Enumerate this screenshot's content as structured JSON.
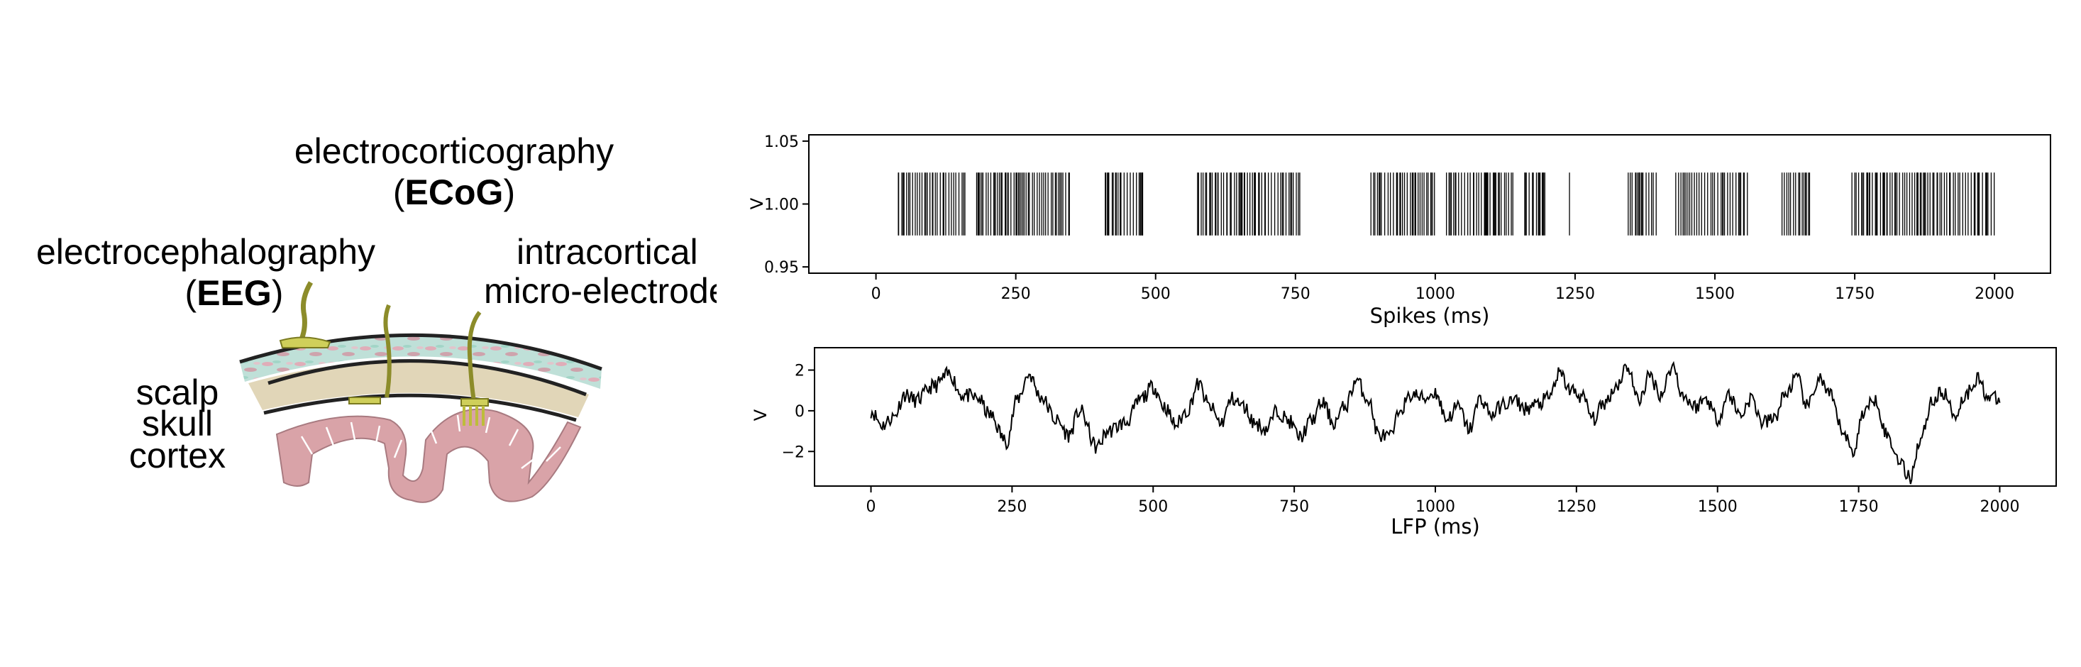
{
  "diagram": {
    "ecog_label": "electrocorticography",
    "ecog_abbr": "ECoG",
    "eeg_label": "electrocephalography",
    "eeg_abbr": "EEG",
    "intracortical_label": "intracortical",
    "microelectrode_label": "micro-electrode",
    "layers": [
      "scalp",
      "skull",
      "cortex"
    ]
  },
  "chart_data": [
    {
      "type": "event-raster",
      "xlabel": "Spikes (ms)",
      "ylabel": "V",
      "xlim": [
        -120,
        2100
      ],
      "ylim": [
        0.945,
        1.055
      ],
      "xticks": [
        0,
        250,
        500,
        750,
        1000,
        1250,
        1500,
        1750,
        2000
      ],
      "yticks": [
        0.95,
        1.0,
        1.05
      ],
      "ytick_labels": [
        "0.95",
        "1.00",
        "1.05"
      ],
      "event_value": 1.0,
      "event_line_extent": [
        0.975,
        1.025
      ],
      "bursts_ms": [
        [
          40,
          160
        ],
        [
          180,
          350
        ],
        [
          410,
          480
        ],
        [
          575,
          760
        ],
        [
          885,
          1000
        ],
        [
          1020,
          1140
        ],
        [
          1160,
          1200
        ],
        [
          1345,
          1400
        ],
        [
          1430,
          1560
        ],
        [
          1620,
          1670
        ],
        [
          1745,
          2000
        ]
      ],
      "isolated_ms": [
        1240
      ],
      "color": "#000000"
    },
    {
      "type": "line",
      "xlabel": "LFP (ms)",
      "ylabel": "V",
      "xlim": [
        -100,
        2100
      ],
      "ylim": [
        -3.7,
        3.1
      ],
      "xticks": [
        0,
        250,
        500,
        750,
        1000,
        1250,
        1500,
        1750,
        2000
      ],
      "yticks": [
        -2,
        0,
        2
      ],
      "ytick_labels": [
        "−2",
        "0",
        "2"
      ],
      "x_range": [
        0,
        2000
      ],
      "keypoints": [
        [
          0,
          0
        ],
        [
          20,
          -0.7
        ],
        [
          40,
          -0.3
        ],
        [
          60,
          0.8
        ],
        [
          80,
          0.5
        ],
        [
          110,
          1.2
        ],
        [
          140,
          1.8
        ],
        [
          160,
          0.8
        ],
        [
          190,
          0.6
        ],
        [
          210,
          -0.2
        ],
        [
          240,
          -1.5
        ],
        [
          260,
          0.6
        ],
        [
          280,
          1.8
        ],
        [
          300,
          0.7
        ],
        [
          330,
          -0.5
        ],
        [
          350,
          -1.2
        ],
        [
          370,
          0.0
        ],
        [
          400,
          -1.8
        ],
        [
          420,
          -1.0
        ],
        [
          450,
          -0.6
        ],
        [
          480,
          0.6
        ],
        [
          500,
          1.2
        ],
        [
          520,
          0.2
        ],
        [
          540,
          -0.7
        ],
        [
          560,
          0.0
        ],
        [
          580,
          1.3
        ],
        [
          600,
          0.2
        ],
        [
          620,
          -0.6
        ],
        [
          640,
          0.6
        ],
        [
          660,
          0.2
        ],
        [
          680,
          -0.6
        ],
        [
          700,
          -0.9
        ],
        [
          720,
          0.0
        ],
        [
          740,
          -0.5
        ],
        [
          760,
          -1.3
        ],
        [
          780,
          -0.5
        ],
        [
          800,
          0.4
        ],
        [
          820,
          -0.6
        ],
        [
          840,
          0.2
        ],
        [
          860,
          1.5
        ],
        [
          880,
          0.6
        ],
        [
          900,
          -1.2
        ],
        [
          920,
          -1.3
        ],
        [
          940,
          0.2
        ],
        [
          960,
          0.8
        ],
        [
          980,
          0.6
        ],
        [
          1000,
          0.9
        ],
        [
          1020,
          -0.4
        ],
        [
          1040,
          0.2
        ],
        [
          1060,
          -0.9
        ],
        [
          1080,
          0.6
        ],
        [
          1100,
          -0.2
        ],
        [
          1120,
          0.3
        ],
        [
          1140,
          0.5
        ],
        [
          1160,
          0.1
        ],
        [
          1180,
          0.3
        ],
        [
          1200,
          0.6
        ],
        [
          1220,
          1.8
        ],
        [
          1240,
          1.0
        ],
        [
          1260,
          0.7
        ],
        [
          1280,
          -0.4
        ],
        [
          1300,
          0.4
        ],
        [
          1320,
          1.2
        ],
        [
          1340,
          2.2
        ],
        [
          1360,
          0.5
        ],
        [
          1380,
          1.7
        ],
        [
          1400,
          0.8
        ],
        [
          1420,
          2.2
        ],
        [
          1440,
          0.7
        ],
        [
          1460,
          0.2
        ],
        [
          1480,
          0.6
        ],
        [
          1500,
          -0.4
        ],
        [
          1520,
          0.8
        ],
        [
          1540,
          -0.2
        ],
        [
          1560,
          0.6
        ],
        [
          1580,
          -0.6
        ],
        [
          1600,
          -0.4
        ],
        [
          1620,
          0.8
        ],
        [
          1640,
          1.6
        ],
        [
          1660,
          0.2
        ],
        [
          1680,
          1.6
        ],
        [
          1700,
          0.7
        ],
        [
          1720,
          -0.9
        ],
        [
          1740,
          -2.0
        ],
        [
          1760,
          0.0
        ],
        [
          1780,
          0.6
        ],
        [
          1800,
          -1.2
        ],
        [
          1820,
          -2.3
        ],
        [
          1840,
          -3.3
        ],
        [
          1860,
          -1.4
        ],
        [
          1880,
          0.5
        ],
        [
          1900,
          0.9
        ],
        [
          1920,
          -0.2
        ],
        [
          1940,
          0.8
        ],
        [
          1960,
          1.6
        ],
        [
          1980,
          0.7
        ],
        [
          2000,
          0.5
        ]
      ],
      "color": "#000000"
    }
  ]
}
